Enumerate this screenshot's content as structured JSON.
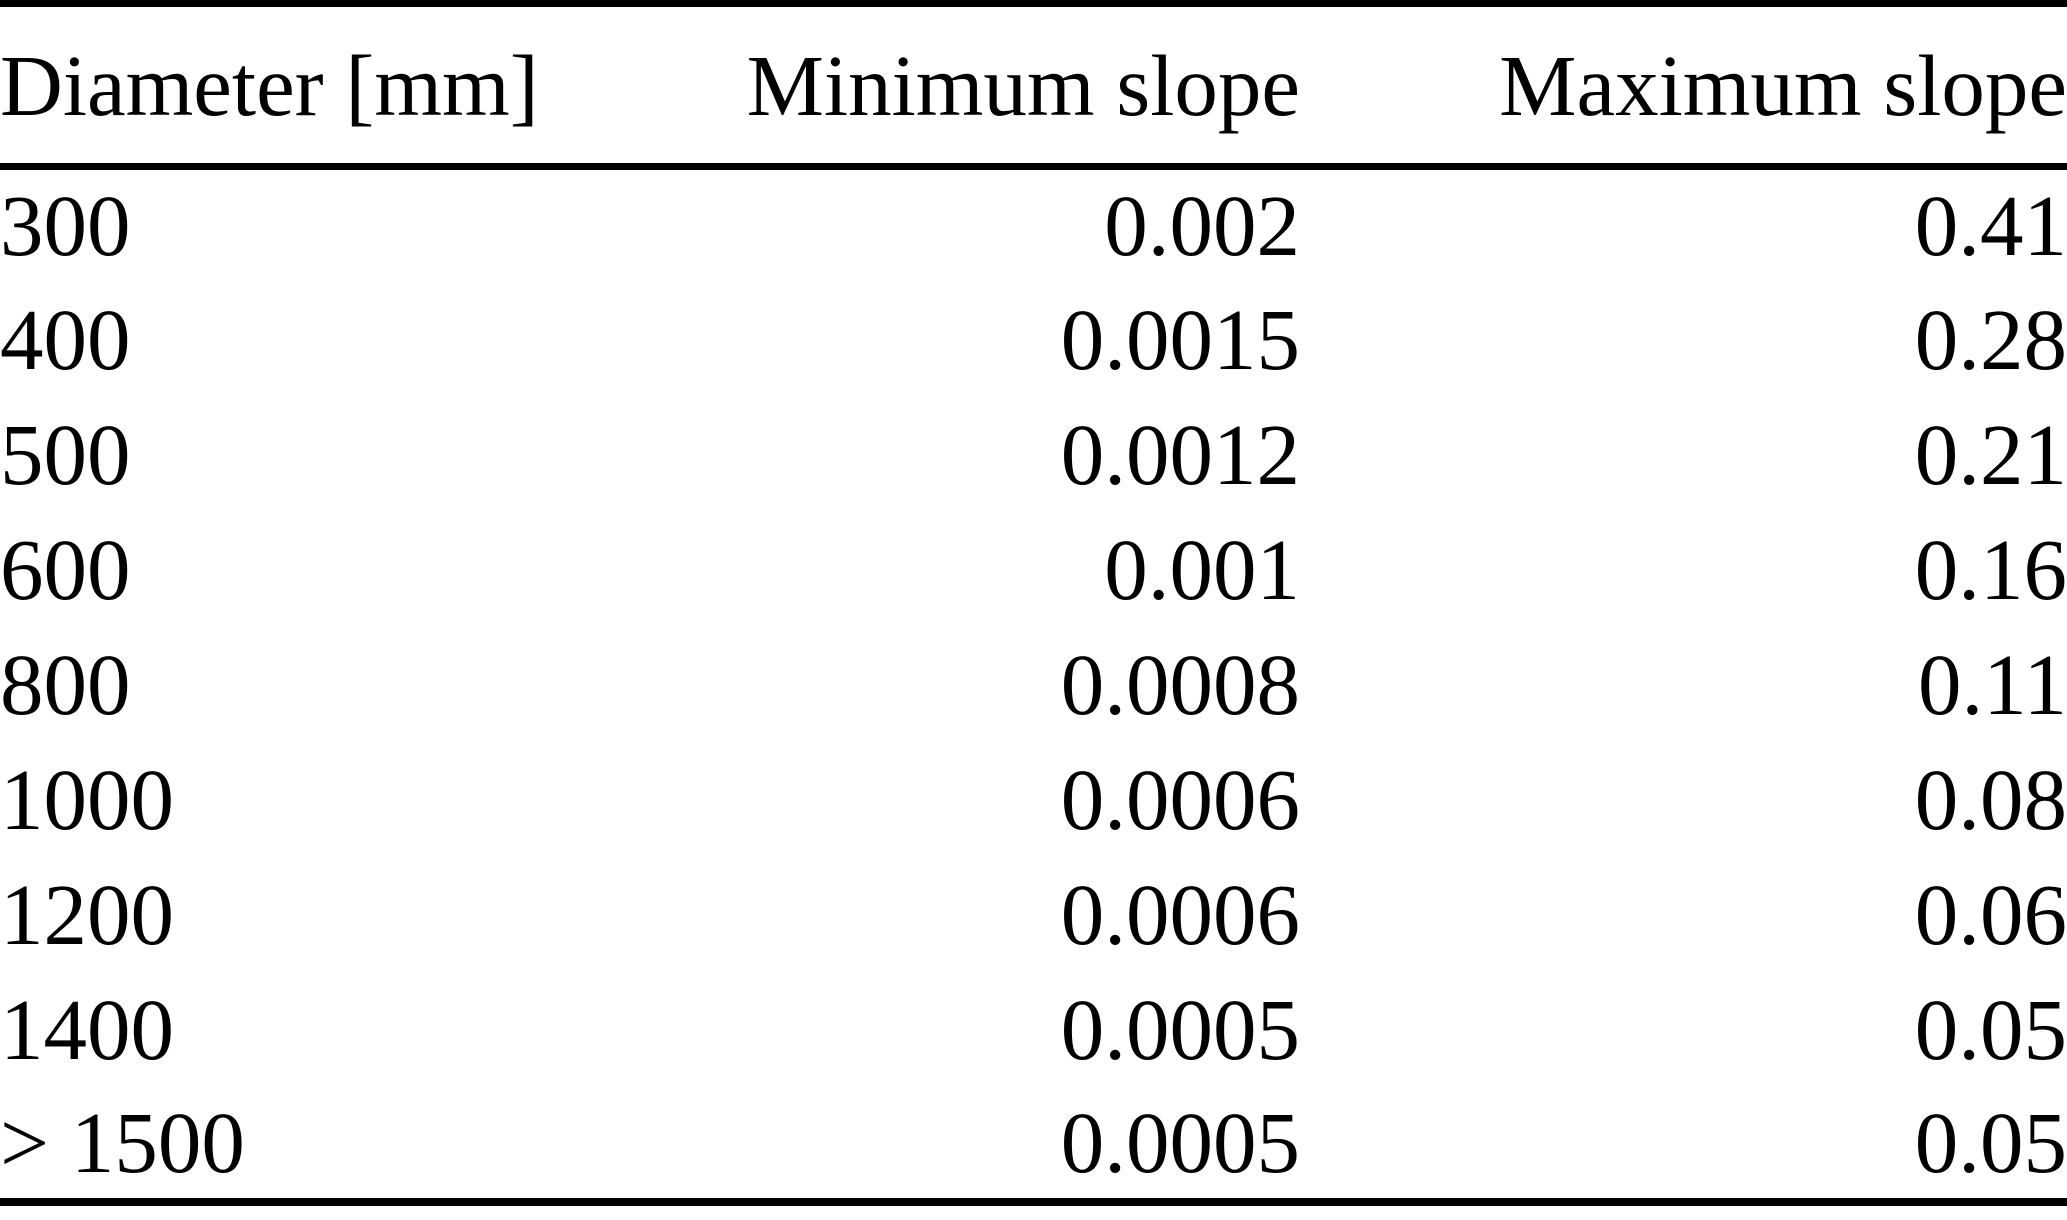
{
  "page": {
    "background_color": "#ffffff",
    "text_color": "#000000",
    "rule_color": "#000000"
  },
  "table": {
    "columns": [
      {
        "label": "Diameter [mm]",
        "align": "left"
      },
      {
        "label": "Minimum slope",
        "align": "right"
      },
      {
        "label": "Maximum slope",
        "align": "right"
      }
    ],
    "rows": [
      {
        "diameter": "300",
        "min_slope": "0.002",
        "max_slope": "0.41"
      },
      {
        "diameter": "400",
        "min_slope": "0.0015",
        "max_slope": "0.28"
      },
      {
        "diameter": "500",
        "min_slope": "0.0012",
        "max_slope": "0.21"
      },
      {
        "diameter": "600",
        "min_slope": "0.001",
        "max_slope": "0.16"
      },
      {
        "diameter": "800",
        "min_slope": "0.0008",
        "max_slope": "0.11"
      },
      {
        "diameter": "1000",
        "min_slope": "0.0006",
        "max_slope": "0.08"
      },
      {
        "diameter": "1200",
        "min_slope": "0.0006",
        "max_slope": "0.06"
      },
      {
        "diameter": "1400",
        "min_slope": "0.0005",
        "max_slope": "0.05"
      },
      {
        "diameter": "> 1500",
        "min_slope": "0.0005",
        "max_slope": "0.05"
      }
    ]
  },
  "chart_data": {
    "type": "table",
    "title": "",
    "columns": [
      "Diameter [mm]",
      "Minimum slope",
      "Maximum slope"
    ],
    "rows": [
      [
        "300",
        0.002,
        0.41
      ],
      [
        "400",
        0.0015,
        0.28
      ],
      [
        "500",
        0.0012,
        0.21
      ],
      [
        "600",
        0.001,
        0.16
      ],
      [
        "800",
        0.0008,
        0.11
      ],
      [
        "1000",
        0.0006,
        0.08
      ],
      [
        "1200",
        0.0006,
        0.06
      ],
      [
        "1400",
        0.0005,
        0.05
      ],
      [
        "> 1500",
        0.0005,
        0.05
      ]
    ]
  }
}
